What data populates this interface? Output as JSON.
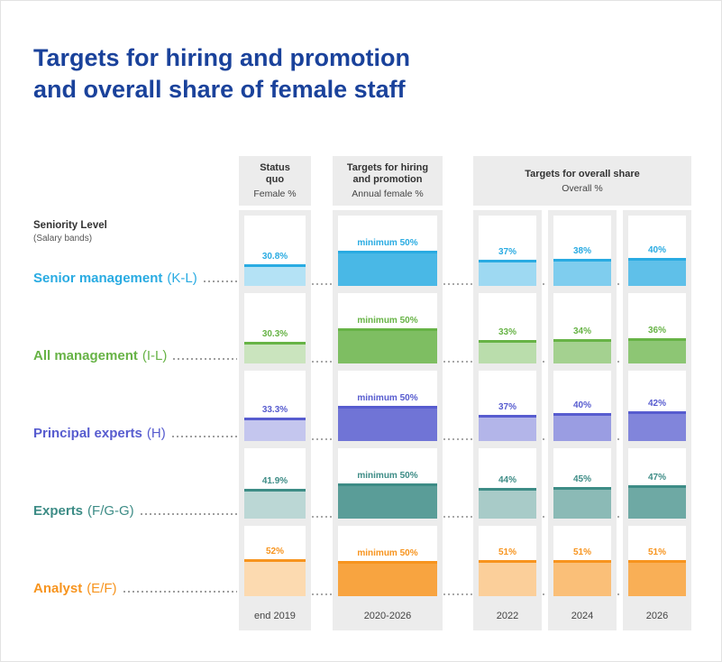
{
  "title": {
    "line1": "Targets for hiring and promotion",
    "line2": "and overall share of female staff"
  },
  "row_axis": {
    "label": "Seniority Level",
    "sublabel": "(Salary bands)"
  },
  "chart_data": {
    "type": "bar",
    "value_unit": "%",
    "ylim": [
      0,
      100
    ],
    "groups": [
      {
        "title": "Status quo",
        "subtitle": "Female %",
        "footers": [
          "end 2019"
        ]
      },
      {
        "title": "Targets for hiring and promotion",
        "subtitle": "Annual female %",
        "footers": [
          "2020-2026"
        ]
      },
      {
        "title": "Targets for overall share",
        "subtitle": "Overall %",
        "footers": [
          "2022",
          "2024",
          "2026"
        ]
      }
    ],
    "columns": [
      "end 2019",
      "2020-2026",
      "2022",
      "2024",
      "2026"
    ],
    "rows": [
      {
        "name": "Senior management",
        "band": "(K-L)",
        "color": "#29ABE2",
        "values": [
          30.8,
          50,
          37,
          38,
          40
        ],
        "labels": [
          "30.8%",
          "minimum 50%",
          "37%",
          "38%",
          "40%"
        ]
      },
      {
        "name": "All management",
        "band": "(I-L)",
        "color": "#67B346",
        "values": [
          30.3,
          50,
          33,
          34,
          36
        ],
        "labels": [
          "30.3%",
          "minimum 50%",
          "33%",
          "34%",
          "36%"
        ]
      },
      {
        "name": "Principal experts",
        "band": "(H)",
        "color": "#575CCF",
        "values": [
          33.3,
          50,
          37,
          40,
          42
        ],
        "labels": [
          "33.3%",
          "minimum 50%",
          "37%",
          "40%",
          "42%"
        ]
      },
      {
        "name": "Experts",
        "band": "(F/G-G)",
        "color": "#3D8C86",
        "values": [
          41.9,
          50,
          44,
          45,
          47
        ],
        "labels": [
          "41.9%",
          "minimum 50%",
          "44%",
          "45%",
          "47%"
        ]
      },
      {
        "name": "Analyst",
        "band": "(E/F)",
        "color": "#F7941E",
        "values": [
          52,
          50,
          51,
          51,
          51
        ],
        "labels": [
          "52%",
          "minimum 50%",
          "51%",
          "51%",
          "51%"
        ]
      }
    ]
  }
}
